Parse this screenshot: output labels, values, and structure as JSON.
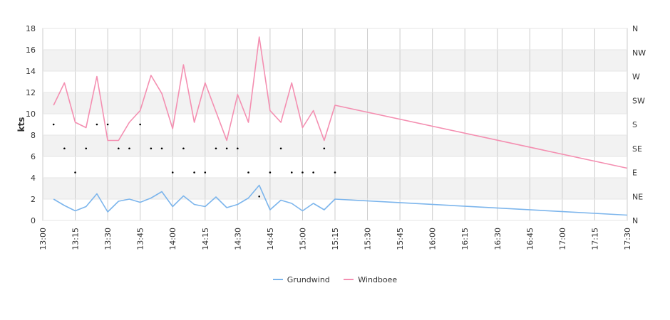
{
  "chart_data": {
    "type": "line",
    "ylabel": "kts",
    "ylim": [
      0,
      18
    ],
    "y_ticks": [
      "0",
      "2",
      "4",
      "6",
      "8",
      "10",
      "12",
      "14",
      "16",
      "18"
    ],
    "direction_ticks": [
      "N",
      "NE",
      "E",
      "SE",
      "S",
      "SW",
      "W",
      "NW",
      "N"
    ],
    "x_ticks": [
      "13:00",
      "13:15",
      "13:30",
      "13:45",
      "14:00",
      "14:15",
      "14:30",
      "14:45",
      "15:00",
      "15:15",
      "15:30",
      "15:45",
      "16:00",
      "16:15",
      "16:30",
      "16:45",
      "17:00",
      "17:15",
      "17:30"
    ],
    "x": [
      "13:05",
      "13:10",
      "13:15",
      "13:20",
      "13:25",
      "13:30",
      "13:35",
      "13:40",
      "13:45",
      "13:50",
      "13:55",
      "14:00",
      "14:05",
      "14:10",
      "14:15",
      "14:20",
      "14:25",
      "14:30",
      "14:35",
      "14:40",
      "14:45",
      "14:50",
      "14:55",
      "15:00",
      "15:05",
      "15:10",
      "15:15"
    ],
    "series": [
      {
        "name": "Grundwind",
        "color": "#7cb5ec",
        "values": [
          2.0,
          1.4,
          0.9,
          1.3,
          2.5,
          0.8,
          1.8,
          2.0,
          1.7,
          2.1,
          2.7,
          1.3,
          2.3,
          1.5,
          1.3,
          2.2,
          1.2,
          1.5,
          2.1,
          3.3,
          1.0,
          1.9,
          1.6,
          0.9,
          1.6,
          1.0,
          2.0
        ],
        "end_value": 0.5
      },
      {
        "name": "Windboee",
        "color": "#f48fb1",
        "values": [
          10.8,
          12.9,
          9.2,
          8.7,
          13.5,
          7.5,
          7.5,
          9.2,
          10.3,
          13.6,
          11.9,
          8.6,
          14.6,
          9.2,
          12.9,
          10.2,
          7.5,
          11.8,
          9.2,
          17.2,
          10.3,
          9.2,
          12.9,
          8.7,
          10.3,
          7.5,
          10.8
        ],
        "end_value": 4.9
      }
    ],
    "direction_points": [
      "S",
      "SE",
      "E",
      "SE",
      "S",
      "S",
      "SE",
      "SE",
      "S",
      "SE",
      "SE",
      "E",
      "SE",
      "E",
      "E",
      "SE",
      "SE",
      "SE",
      "E",
      "NE",
      "E",
      "SE",
      "E",
      "E",
      "E",
      "SE",
      "E"
    ],
    "grid": true,
    "legend_position": "bottom-center"
  }
}
